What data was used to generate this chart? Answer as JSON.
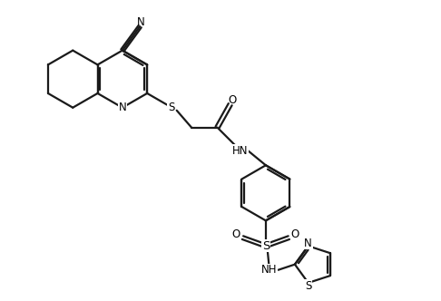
{
  "bg_color": "#ffffff",
  "bond_color": "#1a1a1a",
  "line_width": 1.6,
  "font_size": 8.5,
  "fig_width": 4.86,
  "fig_height": 3.32,
  "dpi": 100,
  "xlim": [
    0,
    9.5
  ],
  "ylim": [
    0,
    6.5
  ]
}
